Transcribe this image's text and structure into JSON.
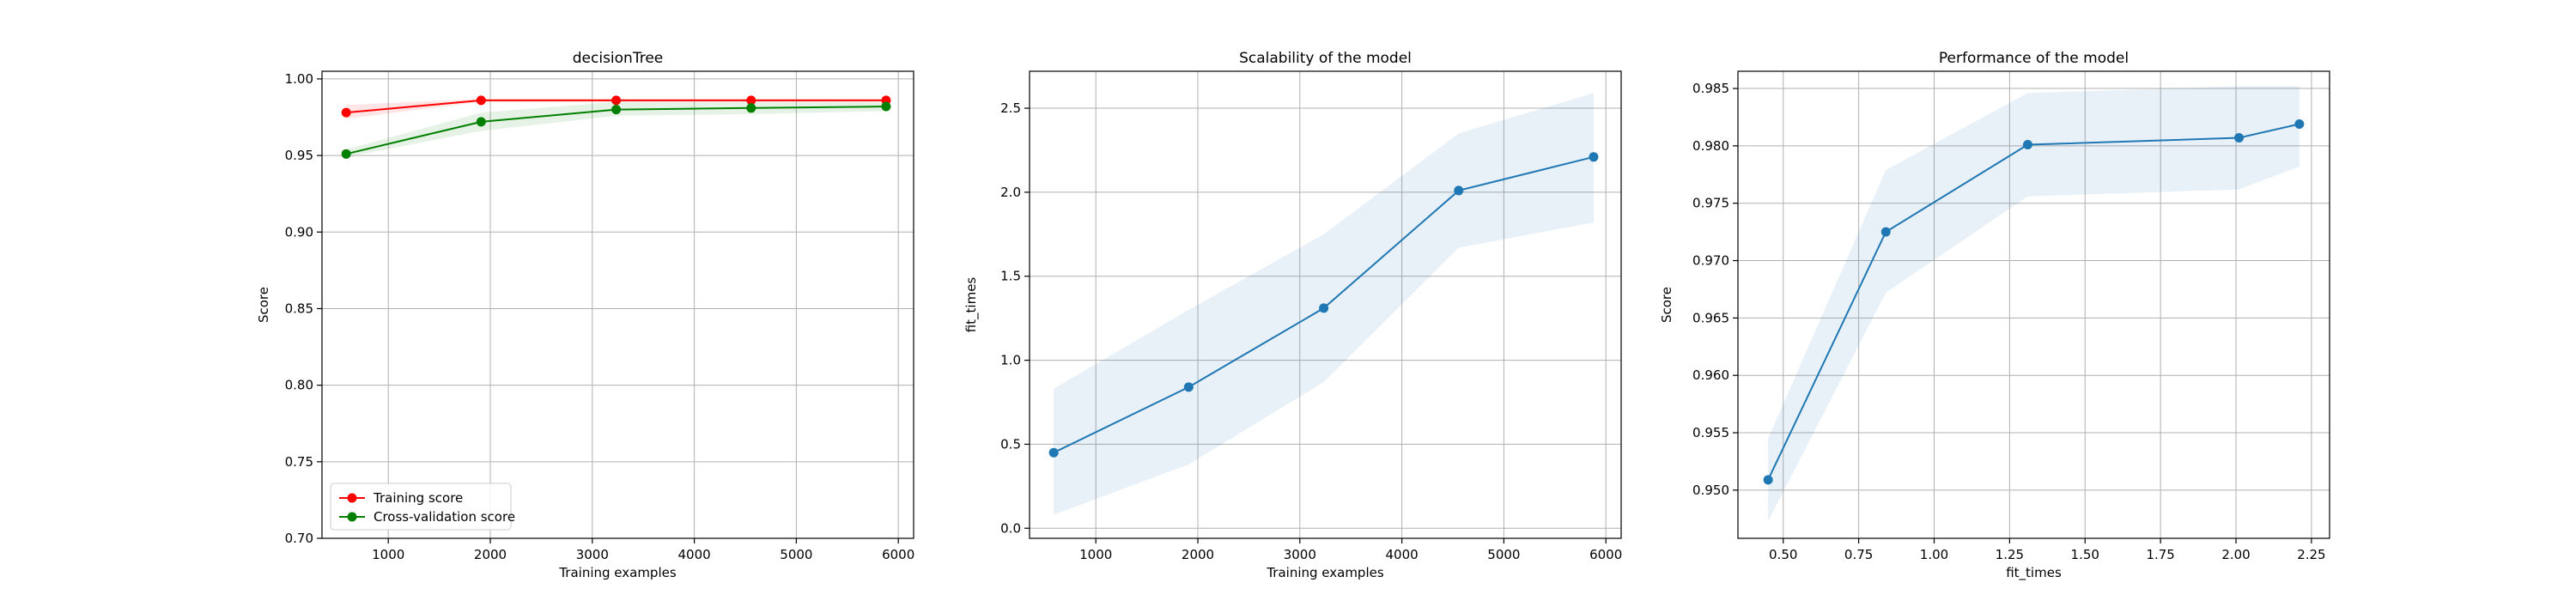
{
  "chart_data": [
    {
      "type": "line",
      "title": "decisionTree",
      "xlabel": "Training examples",
      "ylabel": "Score",
      "xlim": [
        350,
        6150
      ],
      "ylim": [
        0.7,
        1.005
      ],
      "xticks": [
        1000,
        2000,
        3000,
        4000,
        5000,
        6000
      ],
      "xtick_labels": [
        "1000",
        "2000",
        "3000",
        "4000",
        "5000",
        "6000"
      ],
      "yticks": [
        0.7,
        0.75,
        0.8,
        0.85,
        0.9,
        0.95,
        1.0
      ],
      "ytick_labels": [
        "0.70",
        "0.75",
        "0.80",
        "0.85",
        "0.90",
        "0.95",
        "1.00"
      ],
      "grid": true,
      "legend": "lower-left",
      "x": [
        587,
        1910,
        3234,
        4557,
        5880
      ],
      "series": [
        {
          "name": "Training score",
          "color": "#ff0000",
          "values": [
            0.978,
            0.986,
            0.986,
            0.986,
            0.986
          ],
          "band_low": [
            0.974,
            0.985,
            0.985,
            0.985,
            0.985
          ],
          "band_high": [
            0.983,
            0.987,
            0.987,
            0.987,
            0.987
          ]
        },
        {
          "name": "Cross-validation score",
          "color": "#008000",
          "values": [
            0.951,
            0.972,
            0.98,
            0.981,
            0.982
          ],
          "band_low": [
            0.949,
            0.966,
            0.976,
            0.977,
            0.979
          ],
          "band_high": [
            0.954,
            0.978,
            0.985,
            0.985,
            0.985
          ]
        }
      ]
    },
    {
      "type": "line",
      "title": "Scalability of the model",
      "xlabel": "Training examples",
      "ylabel": "fit_times",
      "xlim": [
        350,
        6150
      ],
      "ylim": [
        -0.06,
        2.72
      ],
      "xticks": [
        1000,
        2000,
        3000,
        4000,
        5000,
        6000
      ],
      "xtick_labels": [
        "1000",
        "2000",
        "3000",
        "4000",
        "5000",
        "6000"
      ],
      "yticks": [
        0.0,
        0.5,
        1.0,
        1.5,
        2.0,
        2.5
      ],
      "ytick_labels": [
        "0.0",
        "0.5",
        "1.0",
        "1.5",
        "2.0",
        "2.5"
      ],
      "grid": true,
      "x": [
        587,
        1910,
        3234,
        4557,
        5880
      ],
      "series": [
        {
          "color": "#1f77b4",
          "values": [
            0.45,
            0.84,
            1.31,
            2.01,
            2.21
          ],
          "band_low": [
            0.08,
            0.38,
            0.87,
            1.67,
            1.82
          ],
          "band_high": [
            0.83,
            1.3,
            1.75,
            2.35,
            2.59
          ]
        }
      ]
    },
    {
      "type": "line",
      "title": "Performance of the model",
      "xlabel": "fit_times",
      "ylabel": "Score",
      "xlim": [
        0.35,
        2.31
      ],
      "ylim": [
        0.9458,
        0.9865
      ],
      "xticks": [
        0.5,
        0.75,
        1.0,
        1.25,
        1.5,
        1.75,
        2.0,
        2.25
      ],
      "xtick_labels": [
        "0.50",
        "0.75",
        "1.00",
        "1.25",
        "1.50",
        "1.75",
        "2.00",
        "2.25"
      ],
      "yticks": [
        0.95,
        0.955,
        0.96,
        0.965,
        0.97,
        0.975,
        0.98,
        0.985
      ],
      "ytick_labels": [
        "0.950",
        "0.955",
        "0.960",
        "0.965",
        "0.970",
        "0.975",
        "0.980",
        "0.985"
      ],
      "grid": true,
      "x": [
        0.45,
        0.84,
        1.31,
        2.01,
        2.21
      ],
      "series": [
        {
          "color": "#1f77b4",
          "values": [
            0.9509,
            0.9725,
            0.9801,
            0.9807,
            0.9819
          ],
          "band_low": [
            0.9473,
            0.9672,
            0.9756,
            0.9762,
            0.9782
          ],
          "band_high": [
            0.9545,
            0.9779,
            0.9846,
            0.9852,
            0.9852
          ]
        }
      ]
    }
  ]
}
